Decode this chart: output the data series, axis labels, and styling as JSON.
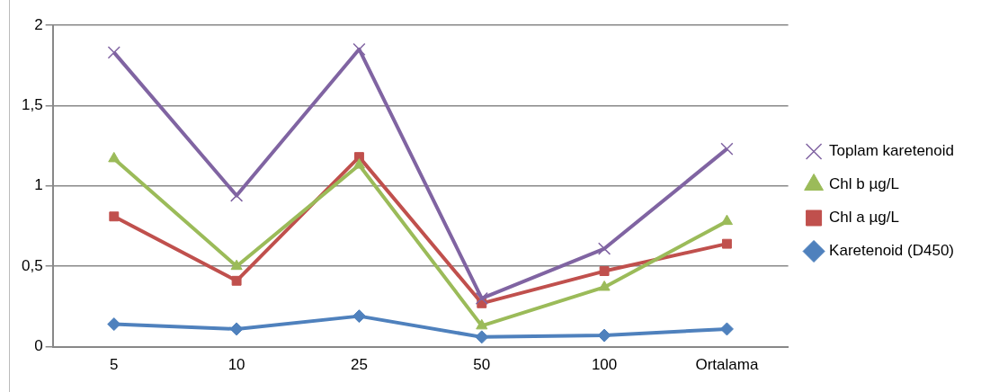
{
  "chart_data": {
    "type": "line",
    "categories": [
      "5",
      "10",
      "25",
      "50",
      "100",
      "Ortalama"
    ],
    "series": [
      {
        "name": "Toplam karetenoid",
        "color": "#8064a2",
        "marker": "cross",
        "values": [
          1.83,
          0.94,
          1.85,
          0.3,
          0.61,
          1.23
        ]
      },
      {
        "name": "Chl b µg/L",
        "color": "#9bbb59",
        "marker": "triangle",
        "values": [
          1.17,
          0.5,
          1.13,
          0.13,
          0.37,
          0.78
        ]
      },
      {
        "name": "Chl a µg/L",
        "color": "#c0504d",
        "marker": "square",
        "values": [
          0.81,
          0.41,
          1.18,
          0.27,
          0.47,
          0.64
        ]
      },
      {
        "name": "Karetenoid (D450)",
        "color": "#4f81bd",
        "marker": "diamond",
        "values": [
          0.14,
          0.11,
          0.19,
          0.06,
          0.07,
          0.11
        ]
      }
    ],
    "ylim": [
      0,
      2
    ],
    "yticks": [
      0,
      {
        "value": 0.5,
        "label": "0,5"
      },
      1,
      {
        "value": 1.5,
        "label": "1,5"
      },
      2
    ],
    "grid": "y",
    "legend": "right"
  }
}
